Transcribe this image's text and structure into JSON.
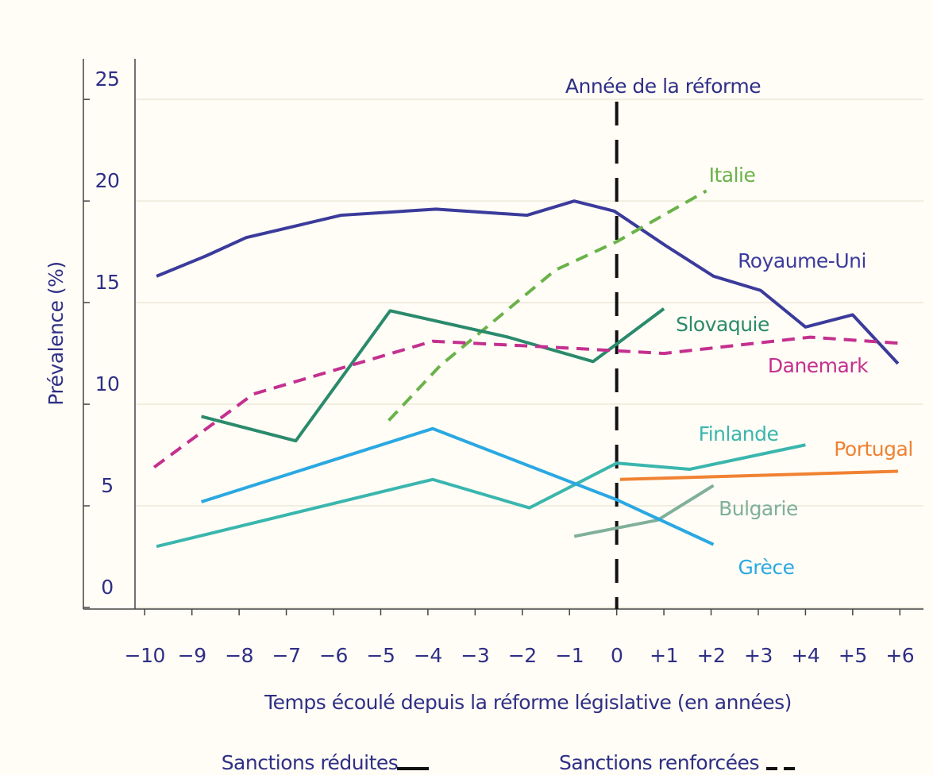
{
  "chart_data": {
    "type": "line",
    "annotation": "Année de la réforme",
    "xlabel": "Temps écoulé depuis la réforme législative (en années)",
    "ylabel": "Prévalence (%)",
    "xlim": [
      -11.3,
      6.5
    ],
    "ylim": [
      0,
      27
    ],
    "xticks": [
      {
        "value": -10,
        "label": "−10"
      },
      {
        "value": -9,
        "label": "−9"
      },
      {
        "value": -8,
        "label": "−8"
      },
      {
        "value": -7,
        "label": "−7"
      },
      {
        "value": -6,
        "label": "−6"
      },
      {
        "value": -5,
        "label": "−5"
      },
      {
        "value": -4,
        "label": "−4"
      },
      {
        "value": -3,
        "label": "−3"
      },
      {
        "value": -2,
        "label": "−2"
      },
      {
        "value": -1,
        "label": "−1"
      },
      0,
      {
        "value": 1,
        "label": "+1"
      },
      {
        "value": 2,
        "label": "+2"
      },
      {
        "value": 3,
        "label": "+3"
      },
      {
        "value": 4,
        "label": "+4"
      },
      {
        "value": 5,
        "label": "+5"
      },
      {
        "value": 6,
        "label": "+6"
      }
    ],
    "yticks": [
      0,
      5,
      10,
      15,
      20,
      25
    ],
    "grid": true,
    "series": [
      {
        "name": "Royaume-Uni",
        "color": "#3b3b9c",
        "dashed": false,
        "x": [
          -9.75,
          -8.7,
          -7.85,
          -5.84,
          -3.83,
          -1.9,
          -0.9,
          -0.05,
          1.04,
          2.05,
          3.05,
          4.0,
          5.0,
          5.96
        ],
        "values": [
          16.3,
          17.3,
          18.2,
          19.3,
          19.6,
          19.3,
          20.0,
          19.5,
          17.8,
          16.3,
          15.6,
          13.8,
          14.4,
          12.0
        ]
      },
      {
        "name": "Italie",
        "color": "#6ab24a",
        "dashed": true,
        "x": [
          -4.83,
          -3.74,
          -1.3,
          0,
          1.9
        ],
        "values": [
          9.2,
          11.9,
          16.6,
          18.0,
          20.5
        ]
      },
      {
        "name": "Slovaquie",
        "color": "#2a8a6c",
        "dashed": false,
        "x": [
          -8.8,
          -6.8,
          -4.8,
          -2.3,
          -0.5,
          1.0
        ],
        "values": [
          9.4,
          8.2,
          14.6,
          13.3,
          12.1,
          14.7
        ]
      },
      {
        "name": "Danemark",
        "color": "#c4308f",
        "dashed": true,
        "x": [
          -9.8,
          -7.7,
          -3.9,
          -1.3,
          1.0,
          4.1,
          6.0
        ],
        "values": [
          6.9,
          10.5,
          13.1,
          12.8,
          12.5,
          13.3,
          13.0
        ]
      },
      {
        "name": "Finlande",
        "color": "#3ab6ae",
        "dashed": false,
        "x": [
          -9.75,
          -3.9,
          -1.85,
          0,
          1.55,
          4.0
        ],
        "values": [
          3.0,
          6.3,
          4.9,
          7.1,
          6.8,
          8.0
        ]
      },
      {
        "name": "Portugal",
        "color": "#f08232",
        "dashed": false,
        "x": [
          0.07,
          5.96
        ],
        "values": [
          6.3,
          6.7
        ]
      },
      {
        "name": "Bulgarie",
        "color": "#80b09a",
        "dashed": false,
        "x": [
          -0.9,
          0.87,
          2.05
        ],
        "values": [
          3.5,
          4.3,
          6.0
        ]
      },
      {
        "name": "Grèce",
        "color": "#2aa8e2",
        "dashed": false,
        "x": [
          -8.8,
          -3.9,
          0,
          2.05
        ],
        "values": [
          5.2,
          8.8,
          5.3,
          3.1
        ]
      }
    ],
    "legend": [
      {
        "label": "Sanctions réduites",
        "dashed": false
      },
      {
        "label": "Sanctions renforcées",
        "dashed": true
      }
    ]
  }
}
